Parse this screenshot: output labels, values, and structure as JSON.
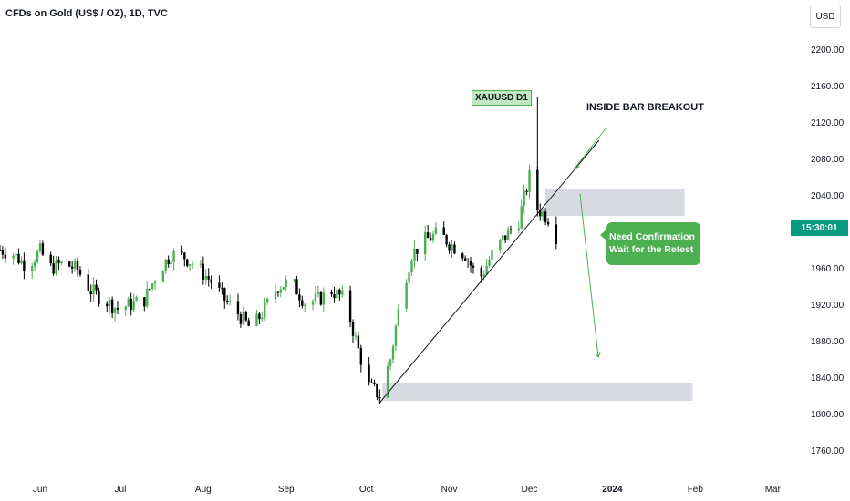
{
  "header": {
    "title": "CFDs on Gold (US$ / OZ), 1D, TVC",
    "currency": "USD"
  },
  "price_label": "15:30:01",
  "annotations": {
    "symbol_tag": "XAUUSD D1",
    "breakout_text": "INSIDE BAR BREAKOUT",
    "callout_line1": "Need Confirmation",
    "callout_line2": "Wait for the Retest"
  },
  "colors": {
    "up": "#4caf50",
    "down": "#000000",
    "zone": "#d1d4dc",
    "price_label": "#089981"
  },
  "chart_data": {
    "type": "candlestick",
    "title": "CFDs on Gold (US$ / OZ), 1D, TVC",
    "xlabel": "",
    "ylabel": "USD",
    "ylim": [
      1730,
      2230
    ],
    "yticks": [
      1760,
      1800,
      1840,
      1880,
      1920,
      1960,
      2000,
      2040,
      2080,
      2120,
      2160,
      2200
    ],
    "ytick_labels": [
      "1760.00",
      "1800.00",
      "1840.00",
      "1880.00",
      "1920.00",
      "1960.00",
      "2000.00",
      "2040.00",
      "2080.00",
      "2120.00",
      "2160.00",
      "2200.00"
    ],
    "xticks": [
      "Jun",
      "Jul",
      "Aug",
      "Sep",
      "Oct",
      "Nov",
      "Dec",
      "2024",
      "Feb",
      "Mar"
    ],
    "xtick_dates": [
      "2023-06-01",
      "2023-07-01",
      "2023-08-01",
      "2023-09-01",
      "2023-10-01",
      "2023-11-01",
      "2023-12-01",
      "2024-01-01",
      "2024-02-01",
      "2024-03-01"
    ],
    "xrange": [
      "2023-05-17",
      "2024-03-06"
    ],
    "series": [
      {
        "values": [
          {
            "date": "2023-05-17",
            "close": 1980
          },
          {
            "date": "2023-05-22",
            "close": 1975
          },
          {
            "date": "2023-05-27",
            "close": 1962
          },
          {
            "date": "2023-06-01",
            "close": 1978
          },
          {
            "date": "2023-06-05",
            "close": 1960
          },
          {
            "date": "2023-06-10",
            "close": 1965
          },
          {
            "date": "2023-06-15",
            "close": 1958
          },
          {
            "date": "2023-06-20",
            "close": 1935
          },
          {
            "date": "2023-06-25",
            "close": 1925
          },
          {
            "date": "2023-06-30",
            "close": 1915
          },
          {
            "date": "2023-07-05",
            "close": 1920
          },
          {
            "date": "2023-07-10",
            "close": 1925
          },
          {
            "date": "2023-07-15",
            "close": 1955
          },
          {
            "date": "2023-07-20",
            "close": 1975
          },
          {
            "date": "2023-07-25",
            "close": 1972
          },
          {
            "date": "2023-07-30",
            "close": 1960
          },
          {
            "date": "2023-08-04",
            "close": 1945
          },
          {
            "date": "2023-08-09",
            "close": 1925
          },
          {
            "date": "2023-08-14",
            "close": 1910
          },
          {
            "date": "2023-08-19",
            "close": 1892
          },
          {
            "date": "2023-08-24",
            "close": 1915
          },
          {
            "date": "2023-08-29",
            "close": 1940
          },
          {
            "date": "2023-09-03",
            "close": 1945
          },
          {
            "date": "2023-09-08",
            "close": 1922
          },
          {
            "date": "2023-09-13",
            "close": 1925
          },
          {
            "date": "2023-09-18",
            "close": 1935
          },
          {
            "date": "2023-09-23",
            "close": 1925
          },
          {
            "date": "2023-09-28",
            "close": 1870
          },
          {
            "date": "2023-10-02",
            "close": 1830
          },
          {
            "date": "2023-10-06",
            "close": 1820
          },
          {
            "date": "2023-10-10",
            "close": 1860
          },
          {
            "date": "2023-10-14",
            "close": 1930
          },
          {
            "date": "2023-10-18",
            "close": 1975
          },
          {
            "date": "2023-10-23",
            "close": 1990
          },
          {
            "date": "2023-10-28",
            "close": 1998
          },
          {
            "date": "2023-11-02",
            "close": 1985
          },
          {
            "date": "2023-11-07",
            "close": 1975
          },
          {
            "date": "2023-11-12",
            "close": 1945
          },
          {
            "date": "2023-11-17",
            "close": 1975
          },
          {
            "date": "2023-11-22",
            "close": 1995
          },
          {
            "date": "2023-11-27",
            "close": 2012
          },
          {
            "date": "2023-12-01",
            "close": 2060
          },
          {
            "date": "2023-12-04",
            "close": 2025
          },
          {
            "date": "2023-12-08",
            "close": 2015
          },
          {
            "date": "2023-12-11",
            "close": 1995
          }
        ]
      }
    ],
    "zones": [
      {
        "from": "2023-12-07",
        "to": "2024-01-28",
        "low": 2017,
        "high": 2047
      },
      {
        "from": "2023-10-07",
        "to": "2024-01-31",
        "low": 1814,
        "high": 1834
      }
    ],
    "trendline": {
      "from": {
        "date": "2023-10-06",
        "value": 1812
      },
      "to": {
        "date": "2023-12-27",
        "value": 2100
      }
    }
  }
}
